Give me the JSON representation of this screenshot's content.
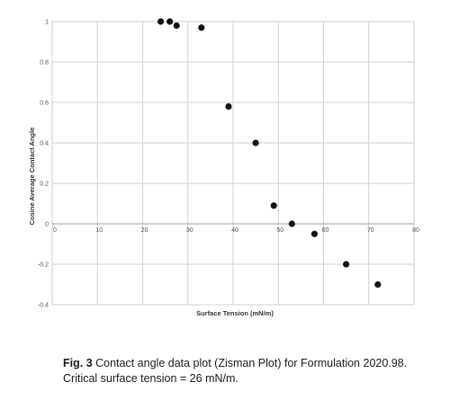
{
  "chart_data": {
    "type": "scatter",
    "xlabel": "Surface Tension (mN/m)",
    "ylabel": "Cosine Average Contact Angle",
    "xlim": [
      0,
      80
    ],
    "ylim": [
      -0.4,
      1
    ],
    "x_ticks": [
      0,
      10,
      20,
      30,
      40,
      50,
      60,
      70,
      80
    ],
    "y_ticks": [
      1,
      0.8,
      0.6,
      0.4,
      0.2,
      0,
      -0.2,
      -0.4
    ],
    "x_tick_labels": [
      "0",
      "10",
      "20",
      "30",
      "40",
      "50",
      "60",
      "70",
      "80"
    ],
    "y_tick_labels": [
      "1",
      "0.8",
      "0.6",
      "0.4",
      "0.2",
      "0",
      "-0.2",
      "-0.4"
    ],
    "grid": true,
    "marker_color": "#111111",
    "points": [
      {
        "x": 24,
        "y": 1.0
      },
      {
        "x": 26,
        "y": 1.0
      },
      {
        "x": 27.5,
        "y": 0.98
      },
      {
        "x": 33,
        "y": 0.97
      },
      {
        "x": 39,
        "y": 0.58
      },
      {
        "x": 45,
        "y": 0.4
      },
      {
        "x": 49,
        "y": 0.09
      },
      {
        "x": 53,
        "y": 0.0
      },
      {
        "x": 58,
        "y": -0.05
      },
      {
        "x": 65,
        "y": -0.2
      },
      {
        "x": 72,
        "y": -0.3
      }
    ]
  },
  "caption": {
    "label": "Fig. 3",
    "line1": " Contact angle data plot (Zisman Plot) for Formulation 2020.98.",
    "line2": "Critical surface tension = 26 mN/m."
  }
}
